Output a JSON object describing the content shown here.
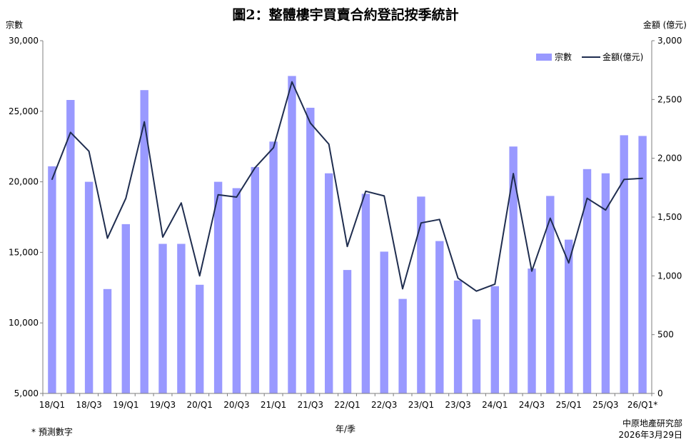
{
  "title": "圖2：整體樓宇買賣合約登記按季統計",
  "ylabel_left": "宗數",
  "ylabel_right": "金額 (億元)",
  "xlabel": "年/季",
  "footnote": "* 預測數字",
  "source": "中原地產研究部",
  "date": "2026年3月29日",
  "colors": {
    "bar": "#9999ff",
    "line": "#1f2d4f",
    "axis": "#7f7f7f"
  },
  "chart_data": {
    "type": "bar",
    "categories": [
      "18/Q1",
      "18/Q2",
      "18/Q3",
      "18/Q4",
      "19/Q1",
      "19/Q2",
      "19/Q3",
      "19/Q4",
      "20/Q1",
      "20/Q2",
      "20/Q3",
      "20/Q4",
      "21/Q1",
      "21/Q2",
      "21/Q3",
      "21/Q4",
      "22/Q1",
      "22/Q2",
      "22/Q3",
      "22/Q4",
      "23/Q1",
      "23/Q2",
      "23/Q3",
      "23/Q4",
      "24/Q1",
      "24/Q2",
      "24/Q3",
      "24/Q4",
      "25/Q1",
      "25/Q2",
      "25/Q3",
      "25/Q4",
      "26/Q1*"
    ],
    "tick_labels": [
      "18/Q1",
      "18/Q3",
      "19/Q1",
      "19/Q3",
      "20/Q1",
      "20/Q3",
      "21/Q1",
      "21/Q3",
      "22/Q1",
      "22/Q3",
      "23/Q1",
      "23/Q3",
      "24/Q1",
      "24/Q3",
      "25/Q1",
      "25/Q3",
      "26/Q1*"
    ],
    "series": [
      {
        "name": "宗數",
        "type": "bar",
        "axis": "left",
        "values": [
          21100,
          25800,
          20000,
          12400,
          17000,
          26500,
          15600,
          15600,
          12700,
          20000,
          19550,
          21050,
          22850,
          27500,
          25250,
          20600,
          13750,
          19150,
          15050,
          11700,
          18950,
          15800,
          13000,
          10250,
          12600,
          22500,
          13850,
          19000,
          15900,
          20900,
          20600,
          23300,
          23250
        ]
      },
      {
        "name": "金額(億元)",
        "type": "line",
        "axis": "right",
        "values": [
          1820,
          2220,
          2060,
          1320,
          1660,
          2310,
          1330,
          1620,
          1000,
          1690,
          1670,
          1920,
          2090,
          2650,
          2300,
          2120,
          1250,
          1720,
          1680,
          890,
          1450,
          1480,
          980,
          870,
          930,
          1870,
          1040,
          1490,
          1110,
          1660,
          1560,
          1820,
          1830
        ]
      }
    ],
    "ylim_left": [
      5000,
      30000
    ],
    "yticks_left": [
      "5,000",
      "10,000",
      "15,000",
      "20,000",
      "25,000",
      "30,000"
    ],
    "ylim_right": [
      0,
      3000
    ],
    "yticks_right": [
      "0",
      "500",
      "1,000",
      "1,500",
      "2,000",
      "2,500",
      "3,000"
    ],
    "grid": false,
    "legend": "top-right"
  }
}
